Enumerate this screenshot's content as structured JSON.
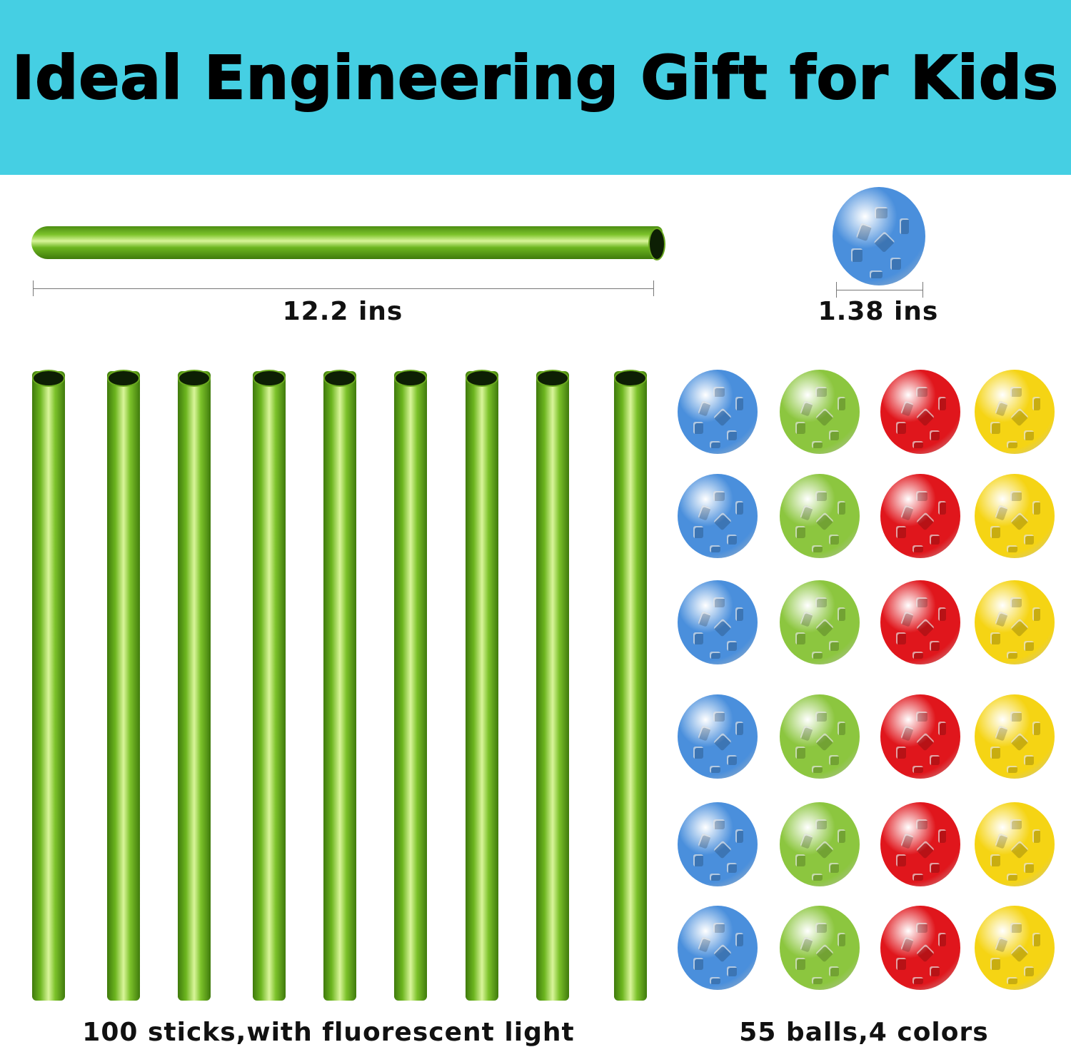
{
  "title": "Ideal Engineering Gift for Kids",
  "stick_length_label": "12.2 ins",
  "ball_diameter_label": "1.38 ins",
  "sticks_caption": "100 sticks,with fluorescent light",
  "balls_caption": "55 balls,4 colors",
  "colors": {
    "banner": "#45cfe3",
    "ball_columns": [
      "#4a8fdc",
      "#8cc63f",
      "#e0161c",
      "#f5d414"
    ]
  }
}
